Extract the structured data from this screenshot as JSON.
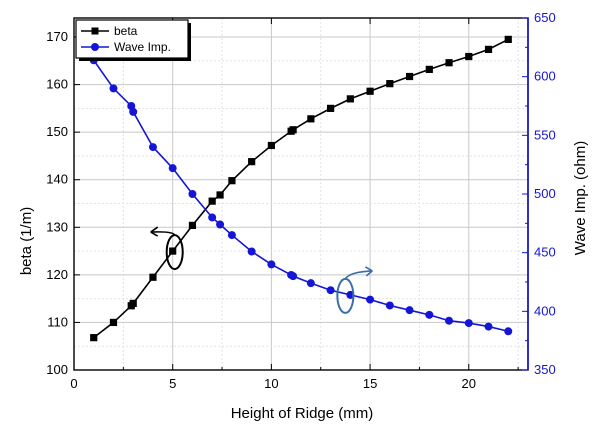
{
  "chart_data": {
    "type": "line",
    "xlabel": "Height of Ridge (mm)",
    "ylabel_left": "beta (1/m)",
    "ylabel_right": "Wave Imp. (ohm)",
    "xlim": [
      0,
      23
    ],
    "ylim_left": [
      100,
      174
    ],
    "ylim_right": [
      350,
      650
    ],
    "x_ticks": [
      0,
      5,
      10,
      15,
      20
    ],
    "y_left_ticks": [
      100,
      110,
      120,
      130,
      140,
      150,
      160,
      170
    ],
    "y_right_ticks": [
      350,
      400,
      450,
      500,
      550,
      600,
      650
    ],
    "grid": true,
    "legend_position": "top-left",
    "colors": {
      "beta": "#000000",
      "wave_imp": "#1515d6",
      "right_axis": "#1515d6",
      "annotation_right": "#3a6ea5"
    },
    "series": [
      {
        "name": "beta",
        "axis": "left",
        "marker": "square",
        "x": [
          1,
          2,
          2.9,
          3,
          4,
          5,
          6,
          7,
          7.4,
          8,
          9,
          10,
          11,
          11.1,
          12,
          13,
          14,
          15,
          16,
          17,
          18,
          19,
          20,
          21,
          22
        ],
        "y": [
          106.8,
          110.0,
          113.5,
          114.0,
          119.5,
          125.0,
          130.4,
          135.5,
          136.8,
          139.8,
          143.8,
          147.2,
          150.2,
          150.5,
          152.8,
          155.0,
          157.0,
          158.6,
          160.2,
          161.7,
          163.2,
          164.6,
          165.9,
          167.4,
          169.5
        ]
      },
      {
        "name": "Wave Imp.",
        "axis": "right",
        "marker": "circle",
        "x": [
          1,
          2,
          2.9,
          3,
          4,
          5,
          6,
          7,
          7.4,
          8,
          9,
          10,
          11,
          11.1,
          12,
          13,
          14,
          15,
          16,
          17,
          18,
          19,
          20,
          21,
          22
        ],
        "y": [
          614,
          590,
          575,
          570,
          540,
          522,
          500,
          480,
          474,
          465,
          451,
          440,
          431,
          430,
          424,
          418,
          414,
          410,
          405,
          401,
          397,
          392,
          390,
          387,
          383
        ]
      }
    ],
    "annotations": [
      {
        "target_axis": "left",
        "anchor_x": 5,
        "anchor_y_left": 125,
        "direction": "left"
      },
      {
        "target_axis": "right",
        "anchor_x": 14,
        "anchor_y_right": 414,
        "direction": "right"
      }
    ]
  }
}
